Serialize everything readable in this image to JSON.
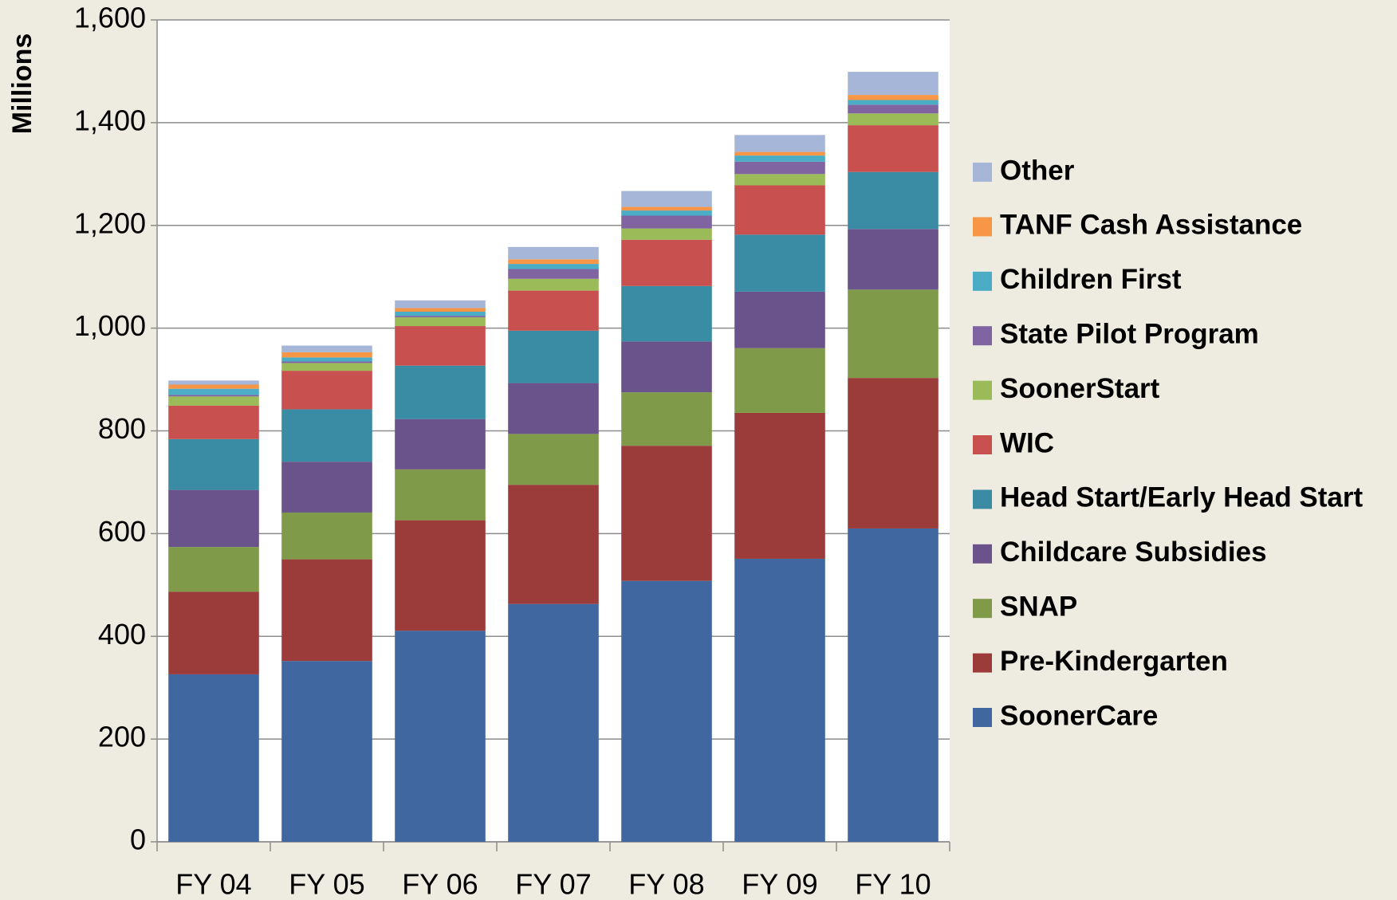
{
  "chart_data": {
    "type": "stacked_bar",
    "y_label": "Millions",
    "categories": [
      "FY 04",
      "FY 05",
      "FY 06",
      "FY 07",
      "FY 08",
      "FY 09",
      "FY 10"
    ],
    "series": [
      {
        "name": "SoonerCare",
        "color": "#4167a0",
        "values": [
          326,
          352,
          411,
          463,
          508,
          551,
          610
        ]
      },
      {
        "name": "Pre-Kindergarten",
        "color": "#9b3b3a",
        "values": [
          161,
          198,
          215,
          232,
          263,
          284,
          293
        ]
      },
      {
        "name": "SNAP",
        "color": "#7f9a48",
        "values": [
          87,
          91,
          99,
          99,
          104,
          126,
          172
        ]
      },
      {
        "name": "Childcare Subsidies",
        "color": "#6a528a",
        "values": [
          111,
          99,
          98,
          99,
          99,
          110,
          118
        ]
      },
      {
        "name": "Head Start/Early Head Start",
        "color": "#3a8ca4",
        "values": [
          99,
          102,
          104,
          102,
          108,
          111,
          111
        ]
      },
      {
        "name": "WIC",
        "color": "#c8504e",
        "values": [
          65,
          75,
          77,
          78,
          90,
          96,
          91
        ]
      },
      {
        "name": "SoonerStart",
        "color": "#9bbb59",
        "values": [
          18,
          15,
          17,
          23,
          22,
          22,
          23
        ]
      },
      {
        "name": "State Pilot Program",
        "color": "#8064a2",
        "values": [
          3,
          3,
          3,
          19,
          25,
          24,
          17
        ]
      },
      {
        "name": "Children First",
        "color": "#4bacc6",
        "values": [
          12,
          8,
          8,
          10,
          10,
          12,
          9
        ]
      },
      {
        "name": "TANF Cash Assistance",
        "color": "#f79646",
        "values": [
          8,
          10,
          7,
          9,
          7,
          7,
          10
        ]
      },
      {
        "name": "Other",
        "color": "#a6b6d8",
        "values": [
          8,
          13,
          15,
          24,
          31,
          33,
          45
        ]
      }
    ],
    "ylim": [
      0,
      1600
    ],
    "yticks": [
      0,
      200,
      400,
      600,
      800,
      {
        "value": 1000,
        "label": "1,000"
      },
      {
        "value": 1200,
        "label": "1,200"
      },
      {
        "value": 1400,
        "label": "1,400"
      },
      {
        "value": 1600,
        "label": "1,600"
      }
    ],
    "grid": true
  }
}
